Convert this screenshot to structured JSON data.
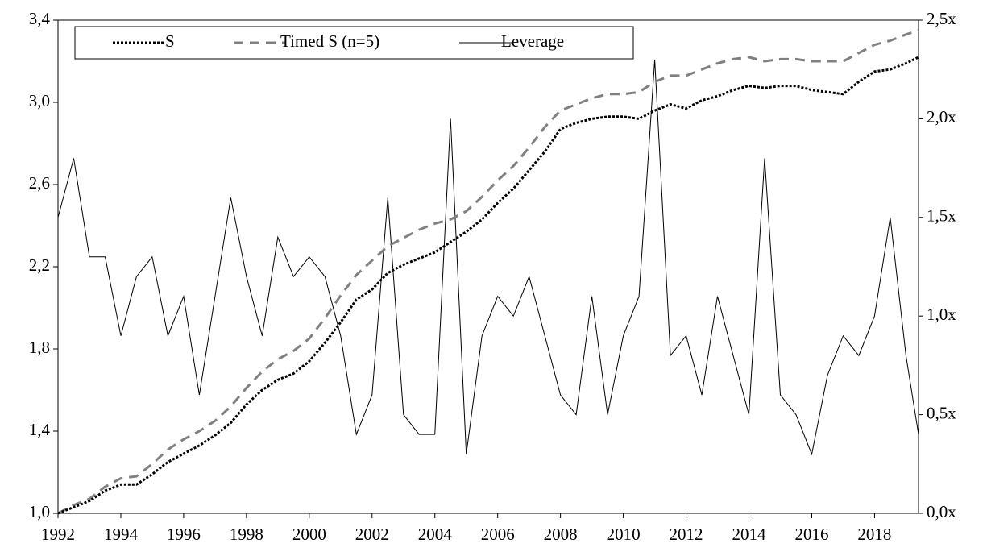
{
  "chart_data": {
    "type": "line",
    "x": [
      1992,
      1992.5,
      1993,
      1993.5,
      1994,
      1994.5,
      1995,
      1995.5,
      1996,
      1996.5,
      1997,
      1997.5,
      1998,
      1998.5,
      1999,
      1999.5,
      2000,
      2000.5,
      2001,
      2001.5,
      2002,
      2002.5,
      2003,
      2003.5,
      2004,
      2004.5,
      2005,
      2005.5,
      2006,
      2006.5,
      2007,
      2007.5,
      2008,
      2008.5,
      2009,
      2009.5,
      2010,
      2010.5,
      2011,
      2011.5,
      2012,
      2012.5,
      2013,
      2013.5,
      2014,
      2014.5,
      2015,
      2015.5,
      2016,
      2016.5,
      2017,
      2017.5,
      2018,
      2018.5,
      2019,
      2019.4
    ],
    "xlim": [
      1992,
      2019.4
    ],
    "xticks": [
      1992,
      1994,
      1996,
      1998,
      2000,
      2002,
      2004,
      2006,
      2008,
      2010,
      2012,
      2014,
      2016,
      2018
    ],
    "ylim": [
      1.0,
      3.4
    ],
    "yticks": [
      {
        "value": 1.0,
        "label": "1,0"
      },
      {
        "value": 1.4,
        "label": "1,4"
      },
      {
        "value": 1.8,
        "label": "1,8"
      },
      {
        "value": 2.2,
        "label": "2,2"
      },
      {
        "value": 2.6,
        "label": "2,6"
      },
      {
        "value": 3.0,
        "label": "3,0"
      },
      {
        "value": 3.4,
        "label": "3,4"
      }
    ],
    "y2lim": [
      0,
      2.5
    ],
    "y2ticks": [
      {
        "value": 0,
        "label": "0,0x"
      },
      {
        "value": 0.5,
        "label": "0,5x"
      },
      {
        "value": 1.0,
        "label": "1,0x"
      },
      {
        "value": 1.5,
        "label": "1,5x"
      },
      {
        "value": 2.0,
        "label": "2,0x"
      },
      {
        "value": 2.5,
        "label": "2,5x"
      }
    ],
    "legend": "top-left",
    "series": [
      {
        "name": "S",
        "color": "#000000",
        "dash": "dotted",
        "values": [
          1.0,
          1.03,
          1.06,
          1.11,
          1.14,
          1.14,
          1.19,
          1.25,
          1.29,
          1.33,
          1.38,
          1.44,
          1.53,
          1.6,
          1.65,
          1.68,
          1.74,
          1.83,
          1.93,
          2.04,
          2.09,
          2.17,
          2.21,
          2.24,
          2.27,
          2.32,
          2.37,
          2.43,
          2.51,
          2.58,
          2.67,
          2.76,
          2.87,
          2.9,
          2.92,
          2.93,
          2.93,
          2.92,
          2.96,
          2.99,
          2.97,
          3.01,
          3.03,
          3.06,
          3.08,
          3.07,
          3.08,
          3.08,
          3.06,
          3.05,
          3.04,
          3.1,
          3.15,
          3.16,
          3.19,
          3.22
        ]
      },
      {
        "name": "Timed S (n=5)",
        "color": "#808080",
        "dash": "dashed",
        "values": [
          1.0,
          1.04,
          1.07,
          1.13,
          1.17,
          1.18,
          1.24,
          1.31,
          1.36,
          1.4,
          1.45,
          1.52,
          1.61,
          1.69,
          1.75,
          1.79,
          1.85,
          1.95,
          2.06,
          2.16,
          2.23,
          2.3,
          2.34,
          2.38,
          2.41,
          2.43,
          2.47,
          2.54,
          2.62,
          2.69,
          2.78,
          2.88,
          2.96,
          2.99,
          3.02,
          3.04,
          3.04,
          3.05,
          3.1,
          3.13,
          3.13,
          3.16,
          3.19,
          3.21,
          3.22,
          3.2,
          3.21,
          3.21,
          3.2,
          3.2,
          3.2,
          3.24,
          3.28,
          3.3,
          3.33,
          3.35
        ]
      },
      {
        "name": "Leverage",
        "color": "#000000",
        "dash": "solid",
        "axis": "y2",
        "values": [
          1.5,
          1.8,
          1.3,
          1.3,
          0.9,
          1.2,
          1.3,
          0.9,
          1.1,
          0.6,
          1.1,
          1.6,
          1.2,
          0.9,
          1.4,
          1.2,
          1.3,
          1.2,
          0.9,
          0.4,
          0.6,
          1.6,
          0.5,
          0.4,
          0.4,
          2.0,
          0.3,
          0.9,
          1.1,
          1.0,
          1.2,
          0.9,
          0.6,
          0.5,
          1.1,
          0.5,
          0.9,
          1.1,
          2.3,
          0.8,
          0.9,
          0.6,
          1.1,
          0.8,
          0.5,
          1.8,
          0.6,
          0.5,
          0.3,
          0.7,
          0.9,
          0.8,
          1.0,
          1.5,
          0.8,
          0.4
        ]
      }
    ]
  }
}
